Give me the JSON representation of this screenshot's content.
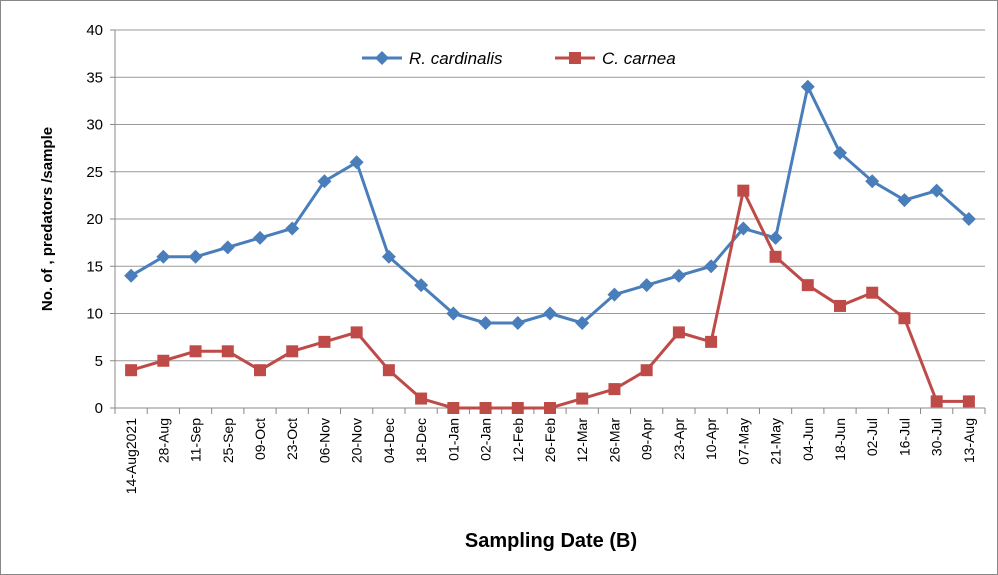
{
  "chart_data": {
    "type": "line",
    "x_label": "Sampling Date (B)",
    "y_label": "No. of , predators /sample",
    "categories": [
      "14-Aug2021",
      "28-Aug",
      "11-Sep",
      "25-Sep",
      "09-Oct",
      "23-Oct",
      "06-Nov",
      "20-Nov",
      "04-Dec",
      "18-Dec",
      "01-Jan",
      "02-Jan",
      "12-Feb",
      "26-Feb",
      "12-Mar",
      "26-Mar",
      "09-Apr",
      "23-Apr",
      "10-Apr",
      "07-May",
      "21-May",
      "04-Jun",
      "18-Jun",
      "02-Jul",
      "16-Jul",
      "30-Jul",
      "13-Aug"
    ],
    "series": [
      {
        "name": "R. cardinalis",
        "color": "#4a7ebb",
        "marker": "diamond",
        "values": [
          14,
          16,
          16,
          17,
          18,
          19,
          24,
          26,
          16,
          13,
          10,
          9,
          9,
          10,
          9,
          12,
          13,
          14,
          15,
          19,
          18,
          34,
          27,
          24,
          22,
          23,
          20
        ]
      },
      {
        "name": "C. carnea",
        "color": "#be4b48",
        "marker": "square",
        "values": [
          4,
          5,
          6,
          6,
          4,
          6,
          7,
          8,
          4,
          1,
          0,
          0,
          0,
          0,
          1,
          2,
          4,
          8,
          7,
          23,
          16,
          13,
          10.8,
          12.2,
          9.5,
          0.7,
          0.7
        ]
      }
    ],
    "ylim": [
      0,
      40
    ],
    "yticks": [
      0,
      5,
      10,
      15,
      20,
      25,
      30,
      35,
      40
    ],
    "grid": true,
    "legend": "top"
  }
}
